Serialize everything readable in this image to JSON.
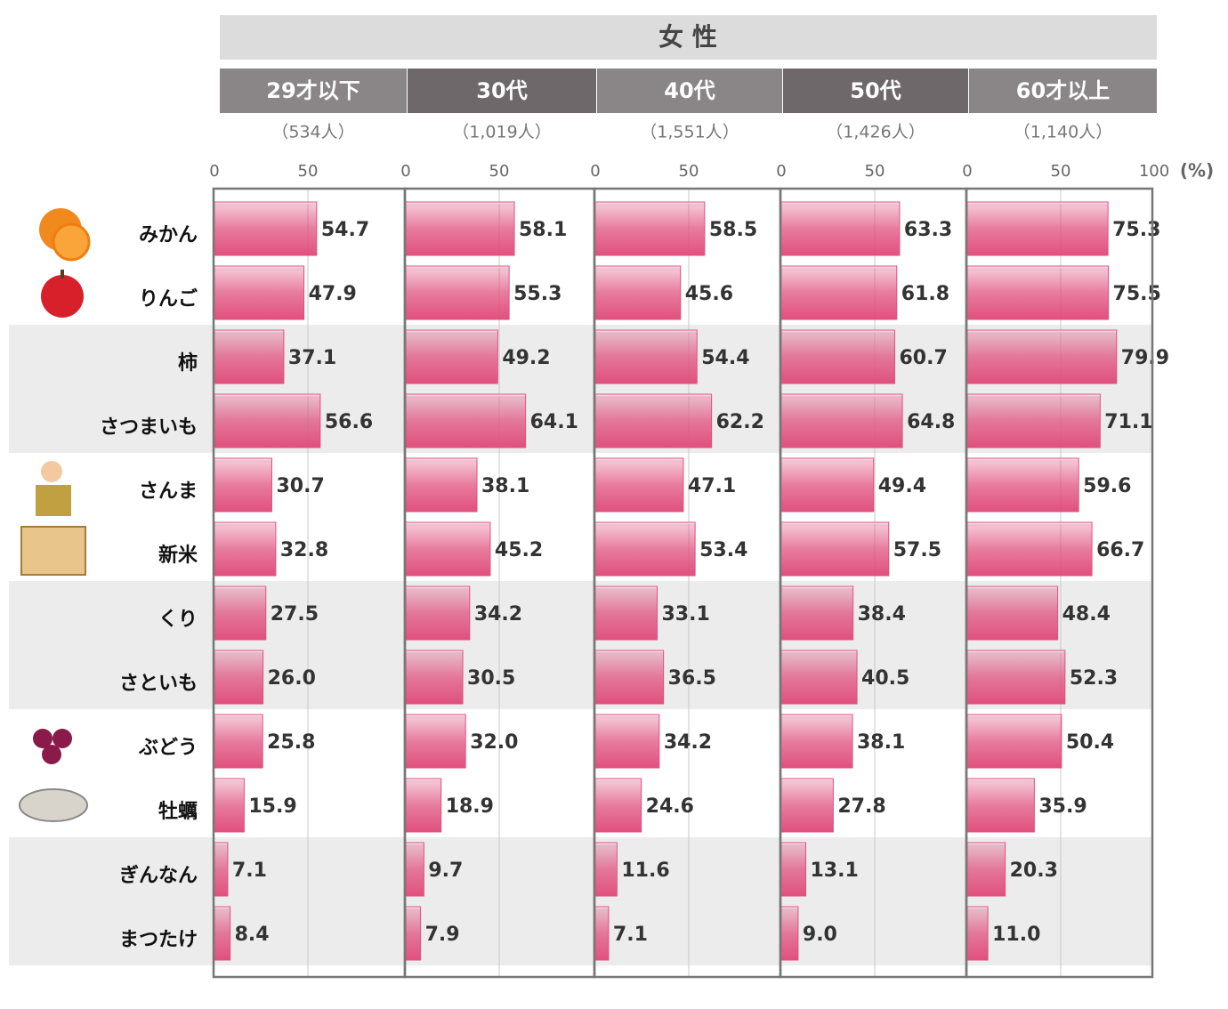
{
  "chart_data": {
    "type": "bar",
    "orientation": "horizontal",
    "title": "女 性",
    "x_unit": "(%)",
    "categories": [
      "みかん",
      "りんご",
      "柿",
      "さつまいも",
      "さんま",
      "新米",
      "くり",
      "さといも",
      "ぶどう",
      "牡蠣",
      "ぎんなん",
      "まつたけ"
    ],
    "color": "#e0507f",
    "xlim": [
      0,
      100
    ],
    "xticks": [
      0,
      50,
      100
    ],
    "grid": true,
    "series": [
      {
        "name": "29才以下",
        "count_label": "（534人）",
        "values": [
          54.7,
          47.9,
          37.1,
          56.6,
          30.7,
          32.8,
          27.5,
          26.0,
          25.8,
          15.9,
          7.1,
          8.4
        ],
        "value_labels": [
          "54.7",
          "47.9",
          "37.1",
          "56.6",
          "30.7",
          "32.8",
          "27.5",
          "26.0",
          "25.8",
          "15.9",
          "7.1",
          "8.4"
        ]
      },
      {
        "name": "30代",
        "count_label": "（1,019人）",
        "values": [
          58.1,
          55.3,
          49.2,
          64.1,
          38.1,
          45.2,
          34.2,
          30.5,
          32.0,
          18.9,
          9.7,
          7.9
        ],
        "value_labels": [
          "58.1",
          "55.3",
          "49.2",
          "64.1",
          "38.1",
          "45.2",
          "34.2",
          "30.5",
          "32.0",
          "18.9",
          "9.7",
          "7.9"
        ]
      },
      {
        "name": "40代",
        "count_label": "（1,551人）",
        "values": [
          58.5,
          45.6,
          54.4,
          62.2,
          47.1,
          53.4,
          33.1,
          36.5,
          34.2,
          24.6,
          11.6,
          7.1
        ],
        "value_labels": [
          "58.5",
          "45.6",
          "54.4",
          "62.2",
          "47.1",
          "53.4",
          "33.1",
          "36.5",
          "34.2",
          "24.6",
          "11.6",
          "7.1"
        ]
      },
      {
        "name": "50代",
        "count_label": "（1,426人）",
        "values": [
          63.3,
          61.8,
          60.7,
          64.8,
          49.4,
          57.5,
          38.4,
          40.5,
          38.1,
          27.8,
          13.1,
          9.0
        ],
        "value_labels": [
          "63.3",
          "61.8",
          "60.7",
          "64.8",
          "49.4",
          "57.5",
          "38.4",
          "40.5",
          "38.1",
          "27.8",
          "13.1",
          "9.0"
        ]
      },
      {
        "name": "60才以上",
        "count_label": "（1,140人）",
        "values": [
          75.3,
          75.5,
          79.9,
          71.1,
          59.6,
          66.7,
          48.4,
          52.3,
          50.4,
          35.9,
          20.3,
          11.0
        ],
        "value_labels": [
          "75.3",
          "75.5",
          "79.9",
          "71.1",
          "59.6",
          "66.7",
          "48.4",
          "52.3",
          "50.4",
          "35.9",
          "20.3",
          "11.0"
        ]
      }
    ]
  }
}
